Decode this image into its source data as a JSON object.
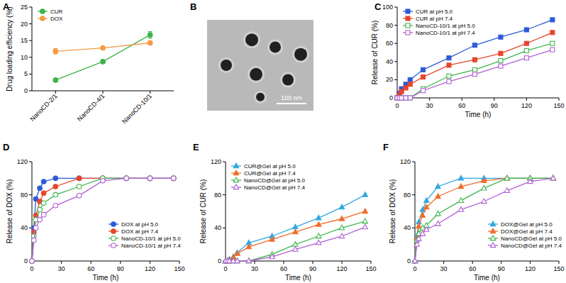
{
  "chart_data": [
    {
      "type": "line",
      "title": "A",
      "y_label": "Drug loading efficiency (%)",
      "categories": [
        "NanoCD-2/1",
        "NanoCD-4/1",
        "NanoCD-10/1"
      ],
      "ylim": [
        0,
        25
      ],
      "yticks": [
        0,
        5,
        10,
        15,
        20,
        25
      ],
      "legend": "upper-left",
      "series": [
        {
          "name": "CUR",
          "color": "#3bb54a",
          "marker": "circle",
          "values": [
            3.2,
            8.7,
            16.7
          ],
          "errors": [
            0.2,
            0.5,
            1.0
          ]
        },
        {
          "name": "DOX",
          "color": "#f39a45",
          "marker": "circle",
          "values": [
            11.8,
            12.8,
            14.3
          ],
          "errors": [
            0.8,
            0.3,
            0.6
          ]
        }
      ]
    },
    {
      "type": "image",
      "title": "B",
      "annotations": [
        "100 nm"
      ]
    },
    {
      "type": "line",
      "title": "C",
      "x_label": "Time (h)",
      "y_label": "Release of CUR (%)",
      "x": [
        0,
        2,
        4,
        8,
        12,
        24,
        48,
        72,
        96,
        120,
        144
      ],
      "xlim": [
        0,
        150
      ],
      "xticks": [
        0,
        30,
        60,
        90,
        120,
        150
      ],
      "ylim": [
        0,
        100
      ],
      "yticks": [
        0,
        20,
        40,
        60,
        80,
        100
      ],
      "legend": "upper-left",
      "series": [
        {
          "name": "CUR at pH 5.0",
          "color": "#2d5bd7",
          "marker": "square",
          "values": [
            0,
            5,
            10,
            15,
            20,
            31,
            44,
            58,
            67,
            75,
            86
          ]
        },
        {
          "name": "CUR at pH 7.4",
          "color": "#e6452c",
          "marker": "square",
          "values": [
            0,
            3,
            7,
            11,
            15,
            23,
            36,
            42,
            49,
            60,
            72
          ]
        },
        {
          "name": "NanoCD-10/1 at pH 5.0",
          "color": "#3bb54a",
          "marker": "open-square",
          "values": [
            0,
            0,
            0,
            0,
            0,
            10,
            24,
            31,
            41,
            52,
            60
          ]
        },
        {
          "name": "NanoCD-10/1 at pH 7.4",
          "color": "#b05fd6",
          "marker": "open-square",
          "values": [
            0,
            0,
            0,
            0,
            0,
            8,
            18,
            26,
            35,
            44,
            53
          ]
        }
      ]
    },
    {
      "type": "line",
      "title": "D",
      "x_label": "Time (h)",
      "y_label": "Release of DOX (%)",
      "x": [
        0,
        2,
        4,
        8,
        12,
        24,
        48,
        72,
        96,
        120,
        144
      ],
      "xlim": [
        0,
        150
      ],
      "xticks": [
        0,
        30,
        60,
        90,
        120,
        150
      ],
      "ylim": [
        0,
        120
      ],
      "yticks": [
        0,
        40,
        80,
        120
      ],
      "legend": "lower-right",
      "series": [
        {
          "name": "DOX at pH 5.0",
          "color": "#2d5bd7",
          "marker": "circle",
          "values": [
            0,
            40,
            75,
            88,
            96,
            100,
            100,
            100,
            100,
            100,
            100
          ]
        },
        {
          "name": "DOX at pH 7.4",
          "color": "#e6452c",
          "marker": "circle",
          "values": [
            0,
            35,
            55,
            72,
            82,
            90,
            100,
            100,
            100,
            100,
            100
          ]
        },
        {
          "name": "NanoCD-10/1 at pH 5.0",
          "color": "#3bb54a",
          "marker": "open-circle",
          "values": [
            0,
            30,
            50,
            62,
            70,
            80,
            90,
            100,
            100,
            100,
            100
          ]
        },
        {
          "name": "NanoCD-10/1 at pH 7.4",
          "color": "#b05fd6",
          "marker": "open-circle",
          "values": [
            0,
            25,
            40,
            50,
            56,
            67,
            79,
            97,
            100,
            100,
            100
          ]
        }
      ]
    },
    {
      "type": "line",
      "title": "E",
      "x_label": "Time (h)",
      "y_label": "Release of CUR (%)",
      "x": [
        0,
        2,
        4,
        8,
        12,
        24,
        48,
        72,
        96,
        120,
        144
      ],
      "xlim": [
        0,
        150
      ],
      "xticks": [
        0,
        30,
        60,
        90,
        120,
        150
      ],
      "ylim": [
        0,
        120
      ],
      "yticks": [
        0,
        40,
        80,
        120
      ],
      "legend": "upper-left",
      "series": [
        {
          "name": "CUR@Gel at pH 5.0",
          "color": "#30a8e0",
          "marker": "triangle",
          "values": [
            0,
            0,
            2,
            5,
            10,
            22,
            30,
            41,
            52,
            65,
            80
          ]
        },
        {
          "name": "CUR@Gel at pH 7.4",
          "color": "#f26b2a",
          "marker": "triangle",
          "values": [
            0,
            0,
            1,
            4,
            9,
            17,
            26,
            35,
            44,
            51,
            60
          ]
        },
        {
          "name": "NanoCD@Gel at pH 5.0",
          "color": "#3bb54a",
          "marker": "open-triangle",
          "values": [
            0,
            0,
            0,
            0,
            0,
            0,
            8,
            20,
            30,
            40,
            48
          ]
        },
        {
          "name": "NanoCD@Gel at pH 7.4",
          "color": "#b05fd6",
          "marker": "open-triangle",
          "values": [
            0,
            0,
            0,
            0,
            0,
            0,
            5,
            14,
            22,
            30,
            41
          ]
        }
      ]
    },
    {
      "type": "line",
      "title": "F",
      "x_label": "Time (h)",
      "y_label": "Release of DOX (%)",
      "x": [
        0,
        2,
        4,
        8,
        12,
        24,
        48,
        72,
        96,
        120,
        144
      ],
      "xlim": [
        0,
        150
      ],
      "xticks": [
        0,
        30,
        60,
        90,
        120,
        150
      ],
      "ylim": [
        0,
        120
      ],
      "yticks": [
        0,
        40,
        80,
        120
      ],
      "legend": "lower-right",
      "series": [
        {
          "name": "DOX@Gel at pH 5.0",
          "color": "#30a8e0",
          "marker": "triangle",
          "values": [
            0,
            30,
            47,
            62,
            73,
            90,
            100,
            100,
            100,
            100,
            100
          ]
        },
        {
          "name": "DOX@Gel at pH 7.4",
          "color": "#f26b2a",
          "marker": "triangle",
          "values": [
            0,
            28,
            42,
            55,
            65,
            78,
            90,
            97,
            100,
            100,
            100
          ]
        },
        {
          "name": "NanoCD@Gel at pH 5.0",
          "color": "#3bb54a",
          "marker": "open-triangle",
          "values": [
            0,
            25,
            33,
            40,
            43,
            57,
            73,
            88,
            100,
            100,
            100
          ]
        },
        {
          "name": "NanoCD@Gel at pH 7.4",
          "color": "#b05fd6",
          "marker": "open-triangle",
          "values": [
            0,
            20,
            27,
            33,
            38,
            45,
            62,
            72,
            85,
            96,
            100
          ]
        }
      ]
    }
  ]
}
